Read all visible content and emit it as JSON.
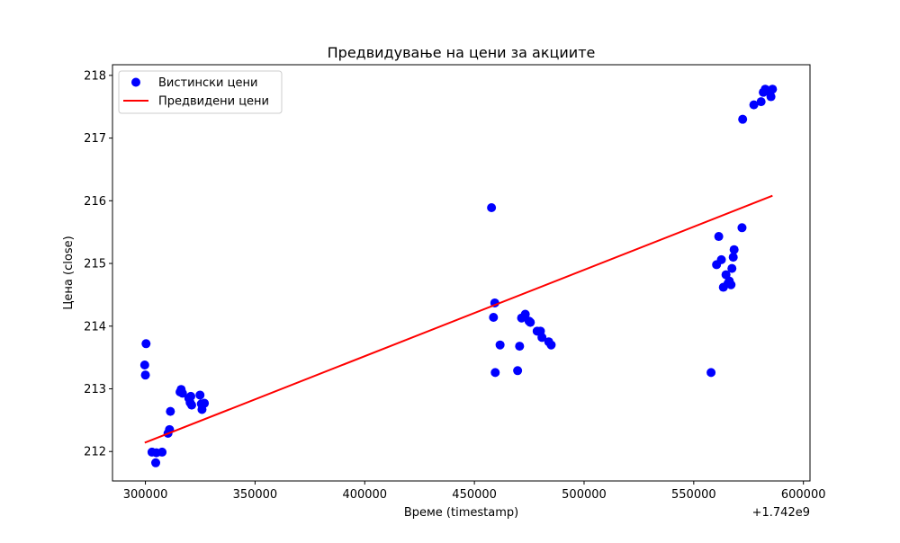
{
  "chart_data": {
    "type": "scatter",
    "title": "Предвидување на цени за акциите",
    "xlabel": "Време (timestamp)",
    "ylabel": "Цена (close)",
    "x_offset_label": "+1.742e9",
    "xlim": [
      285000,
      603000
    ],
    "ylim": [
      211.53,
      218.17
    ],
    "xticks": [
      300000,
      350000,
      400000,
      450000,
      500000,
      550000,
      600000
    ],
    "xtick_labels": [
      "300000",
      "350000",
      "400000",
      "450000",
      "500000",
      "550000",
      "600000"
    ],
    "yticks": [
      212,
      213,
      214,
      215,
      216,
      217,
      218
    ],
    "ytick_labels": [
      "212",
      "213",
      "214",
      "215",
      "216",
      "217",
      "218"
    ],
    "grid": false,
    "legend_position": "upper-left",
    "series": [
      {
        "name": "Вистински цени",
        "kind": "scatter",
        "color": "#0000ff",
        "points": [
          [
            299700,
            213.38
          ],
          [
            300000,
            213.22
          ],
          [
            300300,
            213.72
          ],
          [
            303000,
            211.99
          ],
          [
            304700,
            211.82
          ],
          [
            305000,
            211.98
          ],
          [
            307600,
            211.99
          ],
          [
            310300,
            212.29
          ],
          [
            311000,
            212.35
          ],
          [
            311400,
            212.64
          ],
          [
            315800,
            212.95
          ],
          [
            316300,
            212.99
          ],
          [
            316900,
            212.93
          ],
          [
            319800,
            212.85
          ],
          [
            320400,
            212.78
          ],
          [
            320700,
            212.88
          ],
          [
            321100,
            212.74
          ],
          [
            324900,
            212.9
          ],
          [
            325500,
            212.76
          ],
          [
            325800,
            212.67
          ],
          [
            326900,
            212.77
          ],
          [
            457800,
            215.89
          ],
          [
            458700,
            214.14
          ],
          [
            459300,
            214.37
          ],
          [
            459500,
            213.26
          ],
          [
            461700,
            213.7
          ],
          [
            469700,
            213.29
          ],
          [
            470600,
            213.68
          ],
          [
            471500,
            214.13
          ],
          [
            473200,
            214.19
          ],
          [
            474900,
            214.08
          ],
          [
            475500,
            214.06
          ],
          [
            478600,
            213.92
          ],
          [
            480100,
            213.92
          ],
          [
            480800,
            213.82
          ],
          [
            483900,
            213.75
          ],
          [
            485000,
            213.7
          ],
          [
            557900,
            213.26
          ],
          [
            560400,
            214.98
          ],
          [
            561400,
            215.43
          ],
          [
            562600,
            215.06
          ],
          [
            563500,
            214.62
          ],
          [
            564700,
            214.82
          ],
          [
            565600,
            214.68
          ],
          [
            566200,
            214.72
          ],
          [
            567000,
            214.66
          ],
          [
            567400,
            214.92
          ],
          [
            568000,
            215.1
          ],
          [
            568400,
            215.22
          ],
          [
            572000,
            215.57
          ],
          [
            572300,
            217.3
          ],
          [
            577400,
            217.53
          ],
          [
            580700,
            217.58
          ],
          [
            581700,
            217.73
          ],
          [
            582600,
            217.78
          ],
          [
            583200,
            217.75
          ],
          [
            585200,
            217.66
          ],
          [
            585900,
            217.78
          ]
        ]
      },
      {
        "name": "Предвидени цени",
        "kind": "line",
        "color": "#ff0000",
        "points": [
          [
            299700,
            212.14
          ],
          [
            585900,
            216.08
          ]
        ]
      }
    ]
  }
}
